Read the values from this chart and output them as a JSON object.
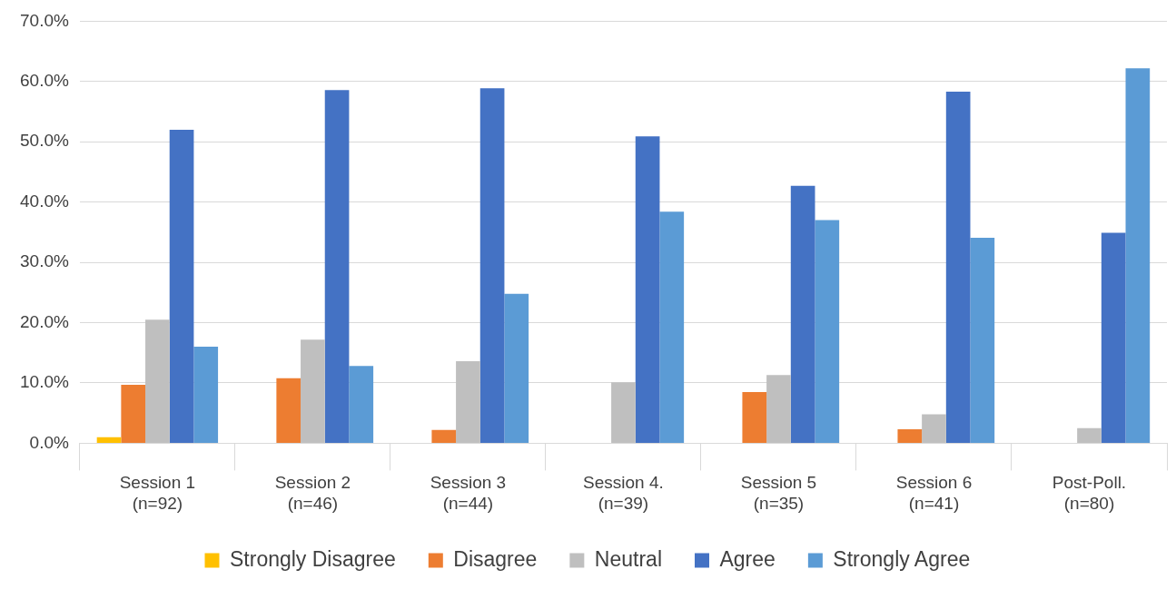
{
  "chart_data": {
    "type": "bar",
    "categories": [
      "Session 1\n(n=92)",
      "Session 2\n(n=46)",
      "Session 3\n(n=44)",
      "Session 4.\n(n=39)",
      "Session 5\n(n=35)",
      "Session 6\n(n=41)",
      "Post-Poll.\n(n=80)"
    ],
    "series": [
      {
        "name": "Strongly Disagree",
        "color": "#ffc000",
        "values": [
          1.0,
          0,
          0,
          0,
          0,
          0,
          0
        ]
      },
      {
        "name": "Disagree",
        "color": "#ed7d31",
        "values": [
          9.7,
          10.8,
          2.2,
          0,
          8.5,
          2.3,
          0
        ]
      },
      {
        "name": "Neutral",
        "color": "#bfbfbf",
        "values": [
          20.5,
          17.2,
          13.6,
          10.1,
          11.3,
          4.8,
          2.5
        ]
      },
      {
        "name": "Agree",
        "color": "#4472c4",
        "values": [
          52.0,
          58.6,
          58.9,
          50.9,
          42.7,
          58.3,
          34.9
        ]
      },
      {
        "name": "Strongly Agree",
        "color": "#5b9bd5",
        "values": [
          16.0,
          12.8,
          24.8,
          38.4,
          37.0,
          34.1,
          62.2
        ]
      }
    ],
    "ylim": [
      0,
      70
    ],
    "yticks": [
      {
        "value": 0,
        "label": "0.0%"
      },
      {
        "value": 10,
        "label": "10.0%"
      },
      {
        "value": 20,
        "label": "20.0%"
      },
      {
        "value": 30,
        "label": "30.0%"
      },
      {
        "value": 40,
        "label": "40.0%"
      },
      {
        "value": 50,
        "label": "50.0%"
      },
      {
        "value": 60,
        "label": "60.0%"
      },
      {
        "value": 70,
        "label": "70.0%"
      }
    ],
    "grid": "y",
    "legend": "bottom"
  }
}
